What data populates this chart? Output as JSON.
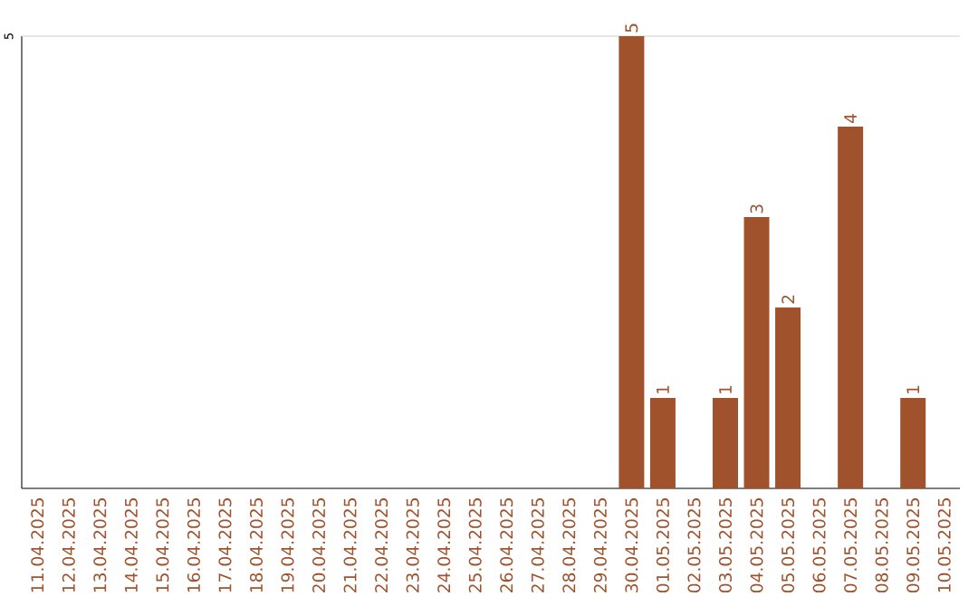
{
  "chart_data": {
    "type": "bar",
    "categories": [
      "11.04.2025",
      "12.04.2025",
      "13.04.2025",
      "14.04.2025",
      "15.04.2025",
      "16.04.2025",
      "17.04.2025",
      "18.04.2025",
      "19.04.2025",
      "20.04.2025",
      "21.04.2025",
      "22.04.2025",
      "23.04.2025",
      "24.04.2025",
      "25.04.2025",
      "26.04.2025",
      "27.04.2025",
      "28.04.2025",
      "29.04.2025",
      "30.04.2025",
      "01.05.2025",
      "02.05.2025",
      "03.05.2025",
      "04.05.2025",
      "05.05.2025",
      "06.05.2025",
      "07.05.2025",
      "08.05.2025",
      "09.05.2025",
      "10.05.2025"
    ],
    "values": [
      null,
      null,
      null,
      null,
      null,
      null,
      null,
      null,
      null,
      null,
      null,
      null,
      null,
      null,
      null,
      null,
      null,
      null,
      null,
      5,
      1,
      null,
      1,
      3,
      2,
      null,
      4,
      null,
      1,
      null
    ],
    "data_labels": true,
    "color": "#a0522d",
    "ylim": [
      0,
      5
    ],
    "yticks": [
      5
    ],
    "ref_lines": [
      {
        "axis": "y",
        "value": 5,
        "color": "#cccccc"
      }
    ]
  }
}
